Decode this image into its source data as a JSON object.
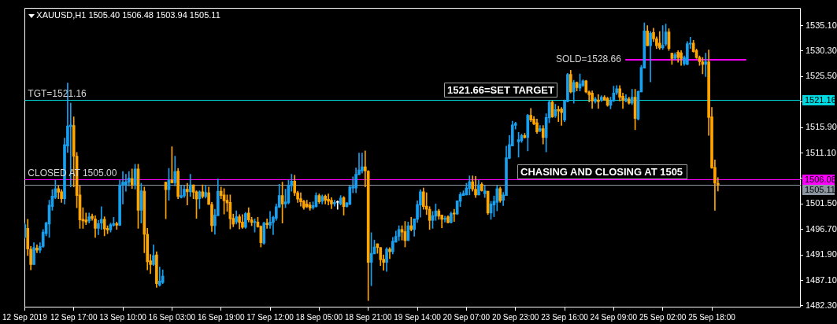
{
  "chart_data": {
    "type": "candlestick",
    "title": "XAUUSD,H1 1505.40 1506.48 1503.94 1505.11",
    "categories": [
      "12 Sep 2019",
      null,
      null,
      null,
      null,
      null,
      null,
      null,
      null,
      null,
      null,
      null,
      null,
      null,
      null,
      null,
      "12 Sep 17:00",
      null,
      null,
      null,
      null,
      null,
      null,
      null,
      null,
      null,
      null,
      null,
      null,
      null,
      null,
      null,
      "13 Sep 10:00",
      null,
      null,
      null,
      null,
      null,
      null,
      null,
      null,
      null,
      null,
      null,
      null,
      null,
      null,
      null,
      "16 Sep 03:00",
      null,
      null,
      null,
      null,
      null,
      null,
      null,
      null,
      null,
      null,
      null,
      null,
      null,
      null,
      null,
      "16 Sep 19:00",
      null,
      null,
      null,
      null,
      null,
      null,
      null,
      null,
      null,
      null,
      null,
      null,
      null,
      null,
      null,
      "17 Sep 12:00",
      null,
      null,
      null,
      null,
      null,
      null,
      null,
      null,
      null,
      null,
      null,
      null,
      null,
      null,
      null,
      "18 Sep 05:00",
      null,
      null,
      null,
      null,
      null,
      null,
      null,
      null,
      null,
      null,
      null,
      null,
      null,
      null,
      null,
      "18 Sep 21:00",
      null,
      null,
      null,
      null,
      null,
      null,
      null,
      null,
      null,
      null,
      null,
      null,
      null,
      null,
      null,
      "19 Sep 14:00",
      null,
      null,
      null,
      null,
      null,
      null,
      null,
      null,
      null,
      null,
      null,
      null,
      null,
      null,
      null,
      "20 Sep 07:00",
      null,
      null,
      null,
      null,
      null,
      null,
      null,
      null,
      null,
      null,
      null,
      null,
      null,
      null,
      null,
      "20 Sep 23:00",
      null,
      null,
      null,
      null,
      null,
      null,
      null,
      null,
      null,
      null,
      null,
      null,
      null,
      null,
      null,
      "23 Sep 16:00",
      null,
      null,
      null,
      null,
      null,
      null,
      null,
      null,
      null,
      null,
      null,
      null,
      null,
      null,
      null,
      "24 Sep 09:00",
      null,
      null,
      null,
      null,
      null,
      null,
      null,
      null,
      null,
      null,
      null,
      null,
      null,
      null,
      null,
      "25 Sep 02:00",
      null,
      null,
      null,
      null,
      null,
      null,
      null,
      null,
      null,
      null,
      null,
      null,
      null,
      null,
      null,
      "25 Sep 18:00",
      null,
      null,
      null,
      null,
      null,
      null,
      null,
      null,
      null,
      null,
      null,
      null,
      null,
      null,
      null,
      null,
      null,
      null,
      null,
      null,
      null,
      null,
      null,
      null,
      null,
      null,
      null,
      null,
      null
    ],
    "series": [
      {
        "ohlc": [
          [
            1495.2,
            1497.9,
            1495.0,
            1497.6
          ],
          [
            1496.9,
            1498.6,
            1491.8,
            1493.0
          ],
          [
            1493.0,
            1493.5,
            1489.1,
            1490.1
          ],
          [
            1490.1,
            1494.2,
            1490.1,
            1493.3
          ],
          [
            1493.2,
            1493.8,
            1492.3,
            1492.8
          ],
          [
            1492.8,
            1494.2,
            1492.3,
            1493.5
          ],
          [
            1493.5,
            1496.7,
            1493.3,
            1496.2
          ],
          [
            1495.9,
            1498.1,
            1495.5,
            1497.9
          ],
          [
            1497.7,
            1502.2,
            1495.2,
            1501.3
          ],
          [
            1501.0,
            1504.2,
            1500.3,
            1503.0
          ],
          [
            1502.7,
            1506.0,
            1502.5,
            1504.4
          ],
          [
            1504.4,
            1504.9,
            1502.5,
            1503.7
          ],
          [
            1503.8,
            1504.2,
            1501.8,
            1502.5
          ],
          [
            1502.5,
            1513.9,
            1501.5,
            1512.7
          ],
          [
            1512.4,
            1524.3,
            1511.2,
            1516.2
          ],
          [
            1516.1,
            1520.5,
            1504.7,
            1516.4
          ],
          [
            1516.3,
            1517.9,
            1504.7,
            1510.5
          ],
          [
            1510.5,
            1511.2,
            1500.8,
            1503.1
          ],
          [
            1503.2,
            1504.9,
            1496.9,
            1498.5
          ],
          [
            1498.6,
            1500.8,
            1496.9,
            1498.3
          ],
          [
            1498.5,
            1499.8,
            1497.6,
            1498.1
          ],
          [
            1498.3,
            1499.8,
            1497.9,
            1499.1
          ],
          [
            1499.2,
            1499.6,
            1498.4,
            1498.8
          ],
          [
            1498.7,
            1499.3,
            1495.2,
            1496.9
          ],
          [
            1496.9,
            1498.4,
            1495.7,
            1497.8
          ],
          [
            1497.9,
            1501.0,
            1496.7,
            1498.6
          ],
          [
            1498.6,
            1499.1,
            1495.5,
            1496.8
          ],
          [
            1496.9,
            1497.4,
            1495.9,
            1496.6
          ],
          [
            1496.6,
            1497.9,
            1496.2,
            1497.6
          ],
          [
            1497.5,
            1499.0,
            1497.3,
            1497.8
          ],
          [
            1497.8,
            1498.1,
            1496.7,
            1497.5
          ],
          [
            1497.5,
            1506.0,
            1497.4,
            1505.1
          ],
          [
            1505.1,
            1507.6,
            1501.5,
            1505.6
          ],
          [
            1505.1,
            1507.1,
            1503.9,
            1505.7
          ],
          [
            1505.6,
            1507.6,
            1504.9,
            1506.4
          ],
          [
            1506.3,
            1508.1,
            1504.4,
            1505.1
          ],
          [
            1505.1,
            1509.0,
            1504.3,
            1508.1
          ],
          [
            1508.1,
            1509.0,
            1496.9,
            1500.3
          ],
          [
            1500.3,
            1505.4,
            1497.9,
            1504.0
          ],
          [
            1503.9,
            1504.7,
            1492.3,
            1495.8
          ],
          [
            1495.8,
            1496.9,
            1489.1,
            1490.6
          ],
          [
            1490.8,
            1492.0,
            1488.4,
            1490.1
          ],
          [
            1490.1,
            1493.8,
            1489.9,
            1491.8
          ],
          [
            1491.9,
            1492.5,
            1485.8,
            1486.5
          ],
          [
            1486.2,
            1489.6,
            1486.0,
            1487.0
          ],
          [
            1486.7,
            1489.1,
            1486.5,
            1487.9
          ],
          [
            1505.6,
            1505.6,
            1498.7,
            1504.2
          ],
          [
            1504.2,
            1508.2,
            1502.2,
            1506.0
          ],
          [
            1506.0,
            1512.3,
            1505.4,
            1505.5
          ],
          [
            1505.5,
            1510.5,
            1504.9,
            1507.6
          ],
          [
            1507.7,
            1508.2,
            1502.5,
            1502.9
          ],
          [
            1502.7,
            1505.0,
            1502.6,
            1503.1
          ],
          [
            1503.0,
            1504.9,
            1502.7,
            1504.3
          ],
          [
            1504.3,
            1505.4,
            1501.3,
            1503.8
          ],
          [
            1503.8,
            1507.1,
            1502.9,
            1505.1
          ],
          [
            1505.1,
            1505.1,
            1502.5,
            1503.7
          ],
          [
            1503.8,
            1504.0,
            1498.8,
            1502.4
          ],
          [
            1502.5,
            1504.0,
            1500.6,
            1503.8
          ],
          [
            1503.8,
            1505.1,
            1502.6,
            1502.9
          ],
          [
            1502.9,
            1505.0,
            1502.6,
            1503.7
          ],
          [
            1503.6,
            1504.7,
            1501.4,
            1501.4
          ],
          [
            1501.4,
            1501.8,
            1496.3,
            1497.4
          ],
          [
            1497.4,
            1500.5,
            1495.8,
            1499.4
          ],
          [
            1499.3,
            1506.2,
            1499.3,
            1503.9
          ],
          [
            1503.9,
            1504.7,
            1502.5,
            1503.1
          ],
          [
            1503.2,
            1504.4,
            1499.6,
            1502.1
          ],
          [
            1502.2,
            1503.2,
            1500.1,
            1501.7
          ],
          [
            1501.8,
            1503.2,
            1496.8,
            1498.7
          ],
          [
            1498.8,
            1499.6,
            1497.2,
            1497.7
          ],
          [
            1498.1,
            1500.2,
            1497.7,
            1499.1
          ],
          [
            1499.1,
            1499.5,
            1496.8,
            1498.0
          ],
          [
            1498.1,
            1499.5,
            1496.9,
            1497.1
          ],
          [
            1497.1,
            1499.9,
            1496.9,
            1499.7
          ],
          [
            1499.8,
            1500.8,
            1498.1,
            1498.5
          ],
          [
            1498.5,
            1499.0,
            1497.4,
            1498.0
          ],
          [
            1498.0,
            1498.7,
            1496.2,
            1498.2
          ],
          [
            1498.1,
            1499.0,
            1497.1,
            1497.2
          ],
          [
            1497.3,
            1497.4,
            1493.4,
            1494.2
          ],
          [
            1494.1,
            1498.1,
            1493.9,
            1497.9
          ],
          [
            1497.9,
            1498.7,
            1496.9,
            1497.6
          ],
          [
            1497.5,
            1500.1,
            1496.9,
            1498.1
          ],
          [
            1498.0,
            1499.2,
            1495.7,
            1499.0
          ],
          [
            1498.8,
            1501.5,
            1498.4,
            1501.0
          ],
          [
            1500.9,
            1505.2,
            1500.8,
            1503.1
          ],
          [
            1503.1,
            1505.6,
            1497.9,
            1501.5
          ],
          [
            1501.5,
            1504.3,
            1500.8,
            1501.9
          ],
          [
            1501.7,
            1506.0,
            1501.5,
            1505.0
          ],
          [
            1504.9,
            1507.1,
            1503.9,
            1505.8
          ],
          [
            1505.8,
            1506.9,
            1503.1,
            1503.6
          ],
          [
            1503.6,
            1503.9,
            1501.8,
            1502.4
          ],
          [
            1502.5,
            1503.6,
            1501.1,
            1501.9
          ],
          [
            1502.0,
            1502.2,
            1500.5,
            1500.8
          ],
          [
            1501.5,
            1502.2,
            1500.8,
            1501.0
          ],
          [
            1501.3,
            1501.8,
            1500.3,
            1500.7
          ],
          [
            1500.8,
            1501.9,
            1500.5,
            1501.2
          ],
          [
            1501.0,
            1503.6,
            1500.9,
            1503.1
          ],
          [
            1503.1,
            1503.4,
            1501.6,
            1501.9
          ],
          [
            1502.0,
            1503.2,
            1501.5,
            1502.9
          ],
          [
            1503.0,
            1503.2,
            1501.5,
            1502.2
          ],
          [
            1502.4,
            1503.4,
            1501.3,
            1502.0
          ],
          [
            1502.2,
            1502.7,
            1500.6,
            1501.5
          ],
          [
            1501.5,
            1502.2,
            1501.1,
            1501.8
          ],
          [
            1501.8,
            1502.1,
            1500.5,
            1501.8
          ],
          [
            1501.5,
            1503.1,
            1501.3,
            1502.6
          ],
          [
            1502.7,
            1502.9,
            1499.4,
            1501.0
          ],
          [
            1501.0,
            1501.8,
            1500.9,
            1501.7
          ],
          [
            1501.4,
            1504.9,
            1501.4,
            1504.7
          ],
          [
            1504.5,
            1506.6,
            1503.6,
            1504.8
          ],
          [
            1504.5,
            1508.3,
            1503.6,
            1507.1
          ],
          [
            1507.0,
            1511.1,
            1507.0,
            1507.9
          ],
          [
            1507.7,
            1511.1,
            1507.3,
            1508.5
          ],
          [
            1508.5,
            1511.5,
            1504.7,
            1507.7
          ],
          [
            1507.7,
            1507.8,
            1483.3,
            1490.5
          ],
          [
            1490.5,
            1496.1,
            1486.1,
            1492.2
          ],
          [
            1492.1,
            1494.7,
            1492.1,
            1493.4
          ],
          [
            1494.0,
            1494.0,
            1492.2,
            1493.3
          ],
          [
            1493.3,
            1493.3,
            1489.9,
            1491.0
          ],
          [
            1491.1,
            1491.9,
            1489.0,
            1490.5
          ],
          [
            1490.5,
            1493.3,
            1488.8,
            1493.0
          ],
          [
            1493.0,
            1493.3,
            1491.2,
            1492.5
          ],
          [
            1492.5,
            1495.2,
            1492.1,
            1494.5
          ],
          [
            1494.3,
            1496.4,
            1494.3,
            1495.4
          ],
          [
            1495.4,
            1497.4,
            1494.6,
            1496.7
          ],
          [
            1496.7,
            1497.4,
            1494.7,
            1496.2
          ],
          [
            1496.3,
            1498.2,
            1493.4,
            1494.6
          ],
          [
            1494.6,
            1498.1,
            1494.6,
            1497.4
          ],
          [
            1497.4,
            1499.0,
            1496.4,
            1496.7
          ],
          [
            1496.7,
            1498.7,
            1495.4,
            1498.7
          ],
          [
            1498.6,
            1502.1,
            1498.0,
            1501.4
          ],
          [
            1501.3,
            1504.2,
            1499.0,
            1503.8
          ],
          [
            1503.8,
            1504.5,
            1500.5,
            1501.0
          ],
          [
            1501.1,
            1503.6,
            1499.5,
            1500.5
          ],
          [
            1500.5,
            1501.0,
            1496.7,
            1498.4
          ],
          [
            1498.4,
            1500.1,
            1496.9,
            1499.3
          ],
          [
            1499.2,
            1501.5,
            1498.4,
            1500.2
          ],
          [
            1500.2,
            1500.5,
            1498.6,
            1499.2
          ],
          [
            1499.4,
            1499.4,
            1497.0,
            1498.6
          ],
          [
            1498.6,
            1499.2,
            1498.1,
            1498.8
          ],
          [
            1499.1,
            1499.3,
            1497.9,
            1498.0
          ],
          [
            1498.0,
            1500.0,
            1497.9,
            1499.7
          ],
          [
            1499.8,
            1500.5,
            1498.2,
            1499.6
          ],
          [
            1499.6,
            1502.1,
            1499.5,
            1502.1
          ],
          [
            1502.0,
            1503.7,
            1501.0,
            1503.3
          ],
          [
            1503.1,
            1504.0,
            1503.1,
            1503.5
          ],
          [
            1503.2,
            1505.4,
            1503.2,
            1504.5
          ],
          [
            1504.4,
            1506.8,
            1503.2,
            1505.7
          ],
          [
            1505.7,
            1506.8,
            1503.9,
            1504.3
          ],
          [
            1504.3,
            1506.7,
            1502.7,
            1503.2
          ],
          [
            1503.2,
            1506.0,
            1503.2,
            1505.1
          ],
          [
            1505.2,
            1505.5,
            1503.9,
            1504.0
          ],
          [
            1503.4,
            1504.9,
            1502.7,
            1504.0
          ],
          [
            1503.9,
            1503.9,
            1499.5,
            1499.8
          ],
          [
            1499.8,
            1502.0,
            1498.6,
            1501.5
          ],
          [
            1501.3,
            1503.0,
            1499.1,
            1502.0
          ],
          [
            1501.8,
            1504.9,
            1500.2,
            1504.4
          ],
          [
            1504.4,
            1504.7,
            1501.8,
            1502.1
          ],
          [
            1502.2,
            1503.7,
            1501.2,
            1503.2
          ],
          [
            1503.1,
            1512.4,
            1503.1,
            1510.2
          ],
          [
            1510.1,
            1514.4,
            1510.0,
            1512.7
          ],
          [
            1512.4,
            1517.1,
            1512.4,
            1516.4
          ],
          [
            1516.3,
            1516.9,
            1515.6,
            1516.7
          ],
          [
            1513.2,
            1515.0,
            1510.3,
            1513.6
          ],
          [
            1513.4,
            1514.7,
            1513.1,
            1514.4
          ],
          [
            1514.4,
            1514.8,
            1513.9,
            1514.0
          ],
          [
            1514.0,
            1518.4,
            1511.5,
            1518.2
          ],
          [
            1518.2,
            1519.5,
            1517.0,
            1517.3
          ],
          [
            1517.5,
            1518.0,
            1516.4,
            1516.6
          ],
          [
            1516.8,
            1517.5,
            1514.8,
            1515.1
          ],
          [
            1515.3,
            1516.3,
            1515.1,
            1515.7
          ],
          [
            1515.7,
            1516.3,
            1512.8,
            1514.0
          ],
          [
            1514.0,
            1518.5,
            1511.3,
            1517.8
          ],
          [
            1517.7,
            1521.0,
            1516.8,
            1520.7
          ],
          [
            1520.7,
            1520.9,
            1517.8,
            1517.9
          ],
          [
            1518.1,
            1520.3,
            1517.8,
            1519.3
          ],
          [
            1519.3,
            1519.9,
            1517.0,
            1519.0
          ],
          [
            1519.4,
            1519.7,
            1516.3,
            1518.7
          ],
          [
            1517.3,
            1521.1,
            1517.0,
            1520.9
          ],
          [
            1520.8,
            1526.1,
            1520.7,
            1525.9
          ],
          [
            1525.9,
            1526.7,
            1522.4,
            1522.6
          ],
          [
            1522.6,
            1524.8,
            1520.5,
            1524.4
          ],
          [
            1524.4,
            1524.5,
            1522.8,
            1523.4
          ],
          [
            1523.3,
            1526.0,
            1522.8,
            1524.1
          ],
          [
            1523.8,
            1524.9,
            1523.6,
            1524.7
          ],
          [
            1524.7,
            1524.8,
            1522.4,
            1522.6
          ],
          [
            1522.6,
            1522.8,
            1520.7,
            1522.1
          ],
          [
            1522.4,
            1522.8,
            1519.5,
            1520.9
          ],
          [
            1520.8,
            1521.6,
            1520.5,
            1521.3
          ],
          [
            1521.1,
            1522.1,
            1519.5,
            1520.8
          ],
          [
            1521.0,
            1521.9,
            1520.8,
            1521.6
          ],
          [
            1521.6,
            1521.9,
            1521.0,
            1521.1
          ],
          [
            1521.4,
            1521.6,
            1519.9,
            1520.1
          ],
          [
            1520.1,
            1521.6,
            1519.4,
            1521.0
          ],
          [
            1520.9,
            1523.7,
            1520.8,
            1522.4
          ],
          [
            1522.4,
            1523.8,
            1522.1,
            1523.2
          ],
          [
            1523.2,
            1523.8,
            1520.9,
            1521.6
          ],
          [
            1521.8,
            1522.4,
            1519.5,
            1521.0
          ],
          [
            1520.9,
            1522.1,
            1520.7,
            1521.4
          ],
          [
            1521.3,
            1521.6,
            1520.3,
            1520.5
          ],
          [
            1520.5,
            1523.1,
            1520.2,
            1521.6
          ],
          [
            1521.6,
            1523.1,
            1515.5,
            1517.6
          ],
          [
            1517.5,
            1522.8,
            1517.3,
            1522.7
          ],
          [
            1522.6,
            1527.6,
            1522.6,
            1527.2
          ],
          [
            1527.1,
            1535.6,
            1527.1,
            1534.1
          ],
          [
            1534.1,
            1535.1,
            1531.3,
            1531.3
          ],
          [
            1531.3,
            1534.0,
            1524.5,
            1533.7
          ],
          [
            1533.8,
            1534.6,
            1532.1,
            1532.6
          ],
          [
            1532.6,
            1533.0,
            1530.8,
            1531.3
          ],
          [
            1531.8,
            1534.0,
            1530.6,
            1530.9
          ],
          [
            1530.9,
            1535.1,
            1530.6,
            1531.4
          ],
          [
            1531.6,
            1535.4,
            1531.3,
            1533.9
          ],
          [
            1533.9,
            1534.5,
            1530.4,
            1530.8
          ],
          [
            1529.9,
            1529.9,
            1527.8,
            1528.9
          ],
          [
            1528.9,
            1530.0,
            1528.7,
            1529.6
          ],
          [
            1530.1,
            1530.4,
            1528.2,
            1529.1
          ],
          [
            1530.0,
            1530.4,
            1527.6,
            1528.9
          ],
          [
            1527.9,
            1529.4,
            1527.6,
            1529.1
          ],
          [
            1527.8,
            1532.1,
            1527.7,
            1531.7
          ],
          [
            1531.6,
            1532.9,
            1530.8,
            1531.8
          ],
          [
            1531.8,
            1532.3,
            1530.1,
            1530.2
          ],
          [
            1530.4,
            1530.7,
            1528.9,
            1529.1
          ],
          [
            1529.1,
            1529.4,
            1527.6,
            1528.3
          ],
          [
            1528.3,
            1529.1,
            1526.0,
            1527.8
          ],
          [
            1527.8,
            1529.9,
            1525.5,
            1528.3
          ],
          [
            1528.3,
            1530.5,
            1514.4,
            1517.8
          ],
          [
            1517.9,
            1519.7,
            1508.2,
            1508.3
          ],
          [
            1508.4,
            1509.8,
            1500.3,
            1505.4
          ],
          [
            1505.4,
            1506.48,
            1503.94,
            1505.11
          ],
          null,
          null,
          null,
          null,
          null,
          null,
          null,
          null,
          null,
          null,
          null,
          null,
          null,
          null,
          null,
          null,
          null,
          null,
          null,
          null,
          null,
          null,
          null,
          null,
          null,
          null,
          null
        ],
        "colors": [
          "#18a0f0",
          "#ffa500",
          "#ffa500",
          "#18a0f0",
          "#ffa500",
          "#18a0f0",
          "#18a0f0",
          "#18a0f0",
          "#18a0f0",
          "#18a0f0",
          "#18a0f0",
          "#ffa500",
          "#ffa500",
          "#18a0f0",
          "#18a0f0",
          "#18a0f0",
          "#ffa500",
          "#ffa500",
          "#ffa500",
          "#ffa500",
          "#ffa500",
          "#18a0f0",
          "#ffa500",
          "#ffa500",
          "#18a0f0",
          "#18a0f0",
          "#ffa500",
          "#ffa500",
          "#18a0f0",
          "#18a0f0",
          "#ffa500",
          "#18a0f0",
          "#18a0f0",
          "#18a0f0",
          "#18a0f0",
          "#ffa500",
          "#18a0f0",
          "#ffa500",
          "#18a0f0",
          "#ffa500",
          "#ffa500",
          "#ffa500",
          "#18a0f0",
          "#ffa500",
          "#18a0f0",
          "#18a0f0",
          "#ffa500",
          "#18a0f0",
          "#ffa500",
          "#18a0f0",
          "#ffa500",
          "#18a0f0",
          "#18a0f0",
          "#ffa500",
          "#18a0f0",
          "#ffa500",
          "#ffa500",
          "#18a0f0",
          "#ffa500",
          "#18a0f0",
          "#ffa500",
          "#ffa500",
          "#18a0f0",
          "#18a0f0",
          "#ffa500",
          "#ffa500",
          "#ffa500",
          "#ffa500",
          "#ffa500",
          "#18a0f0",
          "#ffa500",
          "#ffa500",
          "#18a0f0",
          "#ffa500",
          "#ffa500",
          "#18a0f0",
          "#ffa500",
          "#ffa500",
          "#18a0f0",
          "#ffa500",
          "#18a0f0",
          "#18a0f0",
          "#18a0f0",
          "#18a0f0",
          "#ffa500",
          "#18a0f0",
          "#18a0f0",
          "#18a0f0",
          "#ffa500",
          "#ffa500",
          "#ffa500",
          "#ffa500",
          "#ffa500",
          "#ffa500",
          "#18a0f0",
          "#18a0f0",
          "#ffa500",
          "#18a0f0",
          "#ffa500",
          "#ffa500",
          "#ffa500",
          "#18a0f0",
          "#ffffff",
          "#18a0f0",
          "#ffa500",
          "#18a0f0",
          "#18a0f0",
          "#18a0f0",
          "#18a0f0",
          "#18a0f0",
          "#18a0f0",
          "#ffa500",
          "#ffa500",
          "#18a0f0",
          "#18a0f0",
          "#ffa500",
          "#ffa500",
          "#ffa500",
          "#18a0f0",
          "#ffa500",
          "#18a0f0",
          "#18a0f0",
          "#18a0f0",
          "#ffa500",
          "#ffa500",
          "#18a0f0",
          "#ffa500",
          "#18a0f0",
          "#18a0f0",
          "#18a0f0",
          "#ffa500",
          "#ffa500",
          "#ffa500",
          "#18a0f0",
          "#18a0f0",
          "#ffa500",
          "#ffa500",
          "#18a0f0",
          "#ffa500",
          "#18a0f0",
          "#ffa500",
          "#18a0f0",
          "#18a0f0",
          "#18a0f0",
          "#18a0f0",
          "#18a0f0",
          "#ffa500",
          "#ffa500",
          "#18a0f0",
          "#ffa500",
          "#18a0f0",
          "#ffa500",
          "#18a0f0",
          "#18a0f0",
          "#18a0f0",
          "#ffa500",
          "#18a0f0",
          "#18a0f0",
          "#18a0f0",
          "#18a0f0",
          "#18a0f0",
          "#18a0f0",
          "#18a0f0",
          "#ffa500",
          "#18a0f0",
          "#ffa500",
          "#ffa500",
          "#ffa500",
          "#18a0f0",
          "#ffa500",
          "#18a0f0",
          "#18a0f0",
          "#ffa500",
          "#18a0f0",
          "#ffa500",
          "#ffa500",
          "#18a0f0",
          "#18a0f0",
          "#ffa500",
          "#18a0f0",
          "#ffa500",
          "#18a0f0",
          "#18a0f0",
          "#ffa500",
          "#ffa500",
          "#ffa500",
          "#18a0f0",
          "#ffa500",
          "#18a0f0",
          "#ffa500",
          "#ffa500",
          "#18a0f0",
          "#18a0f0",
          "#18a0f0",
          "#ffa500",
          "#ffa500",
          "#18a0f0",
          "#ffa500",
          "#18a0f0",
          "#ffa500",
          "#18a0f0",
          "#18a0f0",
          "#18a0f0",
          "#ffa500",
          "#18a0f0",
          "#ffa500",
          "#ffa500",
          "#ffa500",
          "#18a0f0",
          "#18a0f0",
          "#ffa500",
          "#ffa500",
          "#18a0f0",
          "#ffa500",
          "#ffa500",
          "#18a0f0",
          "#18a0f0",
          "#18a0f0",
          "#ffa500",
          "#ffa500",
          "#ffa500",
          "#ffa500",
          "#18a0f0",
          "#ffa500",
          "#ffa500",
          "#ffa500",
          "#ffa500",
          null,
          null,
          null,
          null,
          null,
          null,
          null,
          null,
          null,
          null,
          null,
          null,
          null,
          null,
          null,
          null,
          null,
          null,
          null,
          null,
          null,
          null,
          null,
          null,
          null,
          null,
          null
        ]
      },
      {
        "type": "line",
        "name": "SOLD=1528.66",
        "color": "#ff00ff",
        "values": [
          null,
          null,
          null,
          null,
          null,
          null,
          null,
          null,
          null,
          null,
          null,
          null,
          null,
          null,
          null,
          null,
          null,
          null,
          null,
          null,
          null,
          null,
          null,
          null,
          null,
          null,
          null,
          null,
          null,
          null,
          null,
          null,
          null,
          null,
          null,
          null,
          null,
          null,
          null,
          null,
          null,
          null,
          null,
          null,
          null,
          null,
          null,
          null,
          null,
          null,
          null,
          null,
          null,
          null,
          null,
          null,
          null,
          null,
          null,
          null,
          null,
          null,
          null,
          null,
          null,
          null,
          null,
          null,
          null,
          null,
          null,
          null,
          null,
          null,
          null,
          null,
          null,
          null,
          null,
          null,
          null,
          null,
          null,
          null,
          null,
          null,
          null,
          null,
          null,
          null,
          null,
          null,
          null,
          null,
          null,
          null,
          null,
          null,
          null,
          null,
          null,
          null,
          null,
          null,
          null,
          null,
          null,
          null,
          null,
          null,
          null,
          null,
          null,
          null,
          null,
          null,
          null,
          null,
          null,
          null,
          null,
          null,
          null,
          null,
          null,
          null,
          null,
          null,
          null,
          null,
          null,
          null,
          null,
          null,
          null,
          null,
          null,
          null,
          null,
          null,
          null,
          null,
          null,
          null,
          null,
          null,
          null,
          null,
          null,
          null,
          null,
          null,
          null,
          null,
          null,
          null,
          null,
          null,
          null,
          null,
          null,
          null,
          null,
          null,
          null,
          null,
          null,
          null,
          null,
          null,
          null,
          null,
          null,
          null,
          null,
          null,
          null,
          null,
          null,
          null,
          null,
          null,
          null,
          null,
          null,
          null,
          null,
          null,
          null,
          null,
          null,
          null,
          null,
          null,
          null,
          null,
          1528.66,
          1528.66,
          1528.66,
          1528.66,
          1528.66,
          1528.66,
          1528.66,
          1528.66,
          1528.66,
          1528.66,
          1528.66,
          1528.66,
          1528.66,
          1528.66,
          1528.66,
          1528.66,
          1528.66,
          1528.66,
          1528.66,
          1528.66,
          1528.66,
          1528.66,
          1528.66,
          1528.66,
          1528.66,
          1528.66,
          1528.66,
          1528.66,
          1528.66,
          1528.66,
          1528.66,
          1528.66,
          1528.66,
          1528.66,
          1528.66,
          1528.66,
          1528.66,
          1528.66,
          1528.66,
          1528.66,
          null,
          null,
          null,
          null,
          null,
          null,
          null,
          null,
          null,
          null,
          null,
          null,
          null,
          null,
          null,
          null,
          null,
          null
        ]
      }
    ],
    "ylim": [
      1482.0,
      1538.5
    ],
    "yticks": [
      {
        "value": 1482.3,
        "label": "1482.30"
      },
      {
        "value": 1487.1,
        "label": "1487.10"
      },
      {
        "value": 1491.9,
        "label": "1491.90"
      },
      {
        "value": 1496.7,
        "label": "1496.70"
      },
      {
        "value": 1501.5,
        "label": "1501.50"
      },
      {
        "value": 1506.3,
        "label": null
      },
      {
        "value": 1511.1,
        "label": "1511.10"
      },
      {
        "value": 1515.9,
        "label": "1515.90"
      },
      {
        "value": 1520.7,
        "label": null
      },
      {
        "value": 1525.5,
        "label": "1525.50"
      },
      {
        "value": 1530.3,
        "label": "1530.30"
      },
      {
        "value": 1535.1,
        "label": "1535.10"
      }
    ],
    "ref_lines": [
      {
        "axis": "y",
        "value": 1521.16,
        "label": "TGT=1521.16",
        "color": "#00d8e0"
      },
      {
        "axis": "y",
        "value": 1506.08,
        "label": "CLOSED AT 1505.00",
        "color": "#ff00ff"
      },
      {
        "axis": "y",
        "value": 1505.11,
        "color": "#8c96a0"
      }
    ],
    "annotations": [
      "1521.66=SET TARGET",
      "CHASING AND CLOSING AT 1505",
      "1521.16",
      "1506.08",
      "1505.11"
    ],
    "grid": false,
    "legend": false
  }
}
